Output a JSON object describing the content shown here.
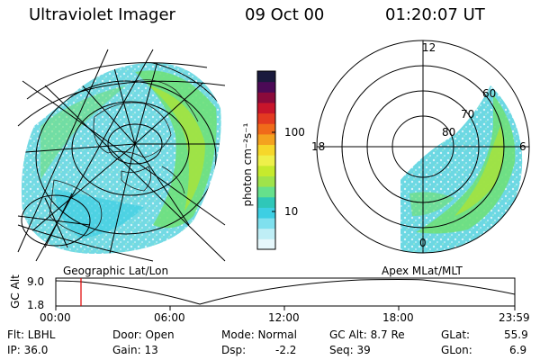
{
  "header": {
    "instrument": "Ultraviolet Imager",
    "date": "09 Oct 00",
    "time": "01:20:07 UT"
  },
  "left_map": {
    "label": "Geographic Lat/Lon"
  },
  "right_map": {
    "label": "Apex MLat/MLT",
    "mlt_labels": [
      "12",
      "18",
      "6",
      "0"
    ],
    "lat_labels": [
      "60",
      "70",
      "80"
    ]
  },
  "colorbar": {
    "unit_label": "photon cm⁻²s⁻¹",
    "tick_labels": [
      "100",
      "10"
    ],
    "colors": [
      "#e6f7fb",
      "#bfeef6",
      "#7fe0ee",
      "#3dcfe3",
      "#2fc7b8",
      "#66e08c",
      "#9fe34b",
      "#c6ea2d",
      "#eef04a",
      "#f6d72a",
      "#f4a21f",
      "#f06a1a",
      "#e33a21",
      "#c8152b",
      "#8b0a3b",
      "#4b0a56",
      "#1a1a3d"
    ]
  },
  "altitude_plot": {
    "ylabel": "GC Alt",
    "y_ticks": [
      "9.0",
      "1.8"
    ],
    "x_ticks": [
      "00:00",
      "06:00",
      "12:00",
      "18:00",
      "23:59"
    ],
    "current_time_marker_color": "#e00000",
    "curve_color": "#000000"
  },
  "info_panel": {
    "flt_label": "Flt: LBHL",
    "door_label": "Door: Open",
    "mode_label": "Mode: Normal",
    "gcalt_label": "GC Alt: 8.7 Re",
    "glat_label": "GLat:",
    "glat_value": "55.9",
    "ip_label": "IP: 36.0",
    "gain_label": "Gain: 13",
    "dsp_label": "Dsp:",
    "dsp_value": "-2.2",
    "seq_label": "Seq: 39",
    "glon_label": "GLon:",
    "glon_value": "6.9"
  }
}
